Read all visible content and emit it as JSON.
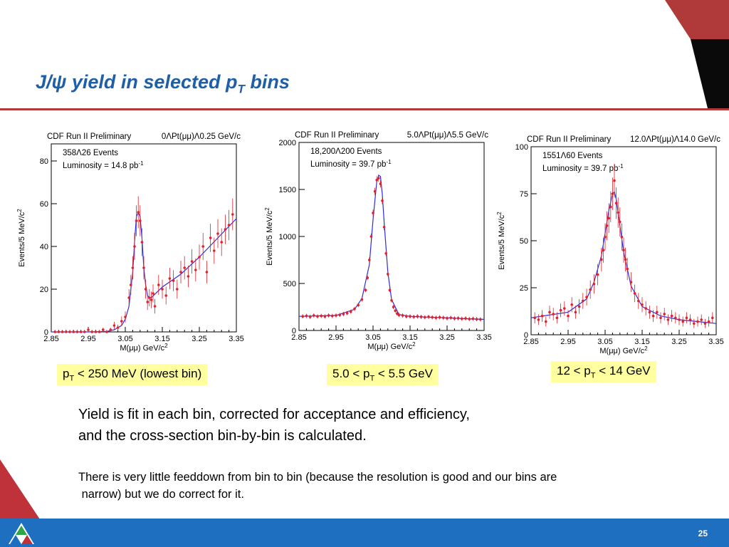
{
  "slide": {
    "title_main": "J/ψ yield in selected p",
    "title_sub": "T",
    "title_end": " bins",
    "page_number": "25",
    "body_text_1_line1": "Yield is fit in each bin, corrected for acceptance and efficiency,",
    "body_text_1_line2": "and the cross-section bin-by-bin is calculated.",
    "body_text_2_line1": "There is very little feeddown from bin to bin (because the resolution is good and our bins are",
    "body_text_2_line2": " narrow) but we do correct for it."
  },
  "captions": [
    {
      "pre": "p",
      "sub": "T",
      "post": " < 250 MeV (lowest bin)"
    },
    {
      "pre": "5.0 < p",
      "sub": "T",
      "post": " < 5.5 GeV"
    },
    {
      "pre": "12 < p",
      "sub": "T",
      "post": " < 14 GeV"
    }
  ],
  "colors": {
    "title": "#1f5fa8",
    "accent_red": "#b03a3a",
    "footer_blue": "#1f6fc0",
    "caption_bg": "#ffff9f",
    "data_points": "#e0202c",
    "fit_curve": "#2d2de0"
  },
  "chart_data": [
    {
      "type": "scatter",
      "header": "CDF Run II Preliminary",
      "range_label": "0ΛPt(μμ)Λ0.25 GeV/c",
      "events": "358Λ26 Events",
      "luminosity": "Luminosity = 14.8 pb",
      "lumi_exp": "-1",
      "xlabel": "M(μμ) GeV/c",
      "ylabel": "Events/5 MeV/c",
      "xlim": [
        2.85,
        3.35
      ],
      "ylim": [
        0,
        88
      ],
      "xticks": [
        "2.85",
        "2.95",
        "3.05",
        "3.15",
        "3.25",
        "3.35"
      ],
      "yticks": [
        0,
        20,
        40,
        60,
        80
      ],
      "x": [
        2.86,
        2.87,
        2.88,
        2.89,
        2.9,
        2.91,
        2.92,
        2.93,
        2.94,
        2.95,
        2.96,
        2.97,
        2.98,
        2.99,
        3.0,
        3.01,
        3.02,
        3.03,
        3.04,
        3.05,
        3.06,
        3.065,
        3.07,
        3.075,
        3.08,
        3.085,
        3.09,
        3.095,
        3.1,
        3.105,
        3.11,
        3.115,
        3.12,
        3.125,
        3.13,
        3.14,
        3.15,
        3.16,
        3.17,
        3.18,
        3.19,
        3.2,
        3.21,
        3.22,
        3.23,
        3.24,
        3.25,
        3.26,
        3.27,
        3.28,
        3.29,
        3.3,
        3.31,
        3.32,
        3.33,
        3.34
      ],
      "y": [
        0,
        0,
        0,
        0,
        0,
        0,
        0,
        0,
        0,
        1,
        0,
        0,
        0,
        1,
        0,
        1,
        3,
        2,
        5,
        7,
        16,
        22,
        30,
        40,
        52,
        56,
        52,
        42,
        30,
        20,
        14,
        16,
        15,
        18,
        12,
        22,
        20,
        17,
        25,
        24,
        20,
        28,
        30,
        26,
        33,
        29,
        35,
        40,
        28,
        44,
        38,
        46,
        42,
        48,
        50,
        55
      ],
      "fit_x": [
        2.85,
        2.95,
        3.0,
        3.02,
        3.04,
        3.05,
        3.06,
        3.07,
        3.075,
        3.08,
        3.085,
        3.09,
        3.095,
        3.1,
        3.105,
        3.11,
        3.115,
        3.12,
        3.15,
        3.2,
        3.25,
        3.3,
        3.35
      ],
      "fit_y": [
        0,
        0,
        0.2,
        1,
        3,
        6,
        12,
        28,
        42,
        54,
        56,
        54,
        44,
        30,
        22,
        17,
        16,
        16,
        21,
        27,
        35,
        44,
        53
      ]
    },
    {
      "type": "scatter",
      "header": "CDF Run II Preliminary",
      "range_label": "5.0ΛPt(μμ)Λ5.5 GeV/c",
      "events": "18,200Λ200 Events",
      "luminosity": "Luminosity = 39.7 pb",
      "lumi_exp": "-1",
      "xlabel": "M(μμ) GeV/c",
      "ylabel": "Events/5 MeV/c",
      "xlim": [
        2.85,
        3.35
      ],
      "ylim": [
        0,
        2000
      ],
      "xticks": [
        "2.85",
        "2.95",
        "3.05",
        "3.15",
        "3.25",
        "3.35"
      ],
      "yticks": [
        0,
        500,
        1000,
        1500,
        2000
      ],
      "x": [
        2.86,
        2.87,
        2.88,
        2.89,
        2.9,
        2.91,
        2.92,
        2.93,
        2.94,
        2.95,
        2.96,
        2.97,
        2.98,
        2.99,
        3.0,
        3.01,
        3.02,
        3.03,
        3.035,
        3.04,
        3.045,
        3.05,
        3.055,
        3.06,
        3.065,
        3.07,
        3.075,
        3.08,
        3.085,
        3.09,
        3.095,
        3.1,
        3.105,
        3.11,
        3.115,
        3.12,
        3.13,
        3.14,
        3.15,
        3.16,
        3.17,
        3.18,
        3.19,
        3.2,
        3.21,
        3.22,
        3.23,
        3.24,
        3.25,
        3.26,
        3.27,
        3.28,
        3.29,
        3.3,
        3.31,
        3.32,
        3.33,
        3.34
      ],
      "y": [
        150,
        155,
        145,
        160,
        150,
        155,
        150,
        160,
        155,
        160,
        165,
        175,
        185,
        200,
        230,
        270,
        330,
        430,
        560,
        750,
        1000,
        1250,
        1480,
        1600,
        1620,
        1560,
        1380,
        1100,
        820,
        600,
        430,
        320,
        250,
        210,
        180,
        165,
        160,
        150,
        150,
        145,
        150,
        145,
        140,
        145,
        140,
        135,
        140,
        135,
        130,
        135,
        128,
        130,
        125,
        128,
        122,
        125,
        120,
        118
      ],
      "fit_x": [
        2.85,
        2.95,
        3.0,
        3.02,
        3.04,
        3.05,
        3.06,
        3.065,
        3.07,
        3.075,
        3.08,
        3.09,
        3.1,
        3.12,
        3.15,
        3.2,
        3.25,
        3.3,
        3.35
      ],
      "fit_y": [
        150,
        160,
        225,
        340,
        700,
        1180,
        1580,
        1650,
        1640,
        1450,
        1150,
        620,
        330,
        170,
        150,
        142,
        135,
        125,
        118
      ]
    },
    {
      "type": "scatter",
      "header": "CDF Run II Preliminary",
      "range_label": "12.0ΛPt(μμ)Λ14.0 GeV/c",
      "events": "1551Λ60 Events",
      "luminosity": "Luminosity = 39.7 pb",
      "lumi_exp": "-1",
      "xlabel": "M(μμ) GeV/c",
      "ylabel": "Events/5 MeV/c",
      "xlim": [
        2.85,
        3.35
      ],
      "ylim": [
        0,
        100
      ],
      "xticks": [
        "2.85",
        "2.95",
        "3.05",
        "3.15",
        "3.25",
        "3.35"
      ],
      "yticks": [
        0,
        25,
        50,
        75,
        100
      ],
      "x": [
        2.86,
        2.87,
        2.88,
        2.89,
        2.9,
        2.91,
        2.92,
        2.93,
        2.94,
        2.95,
        2.96,
        2.97,
        2.98,
        2.99,
        3.0,
        3.01,
        3.02,
        3.03,
        3.04,
        3.045,
        3.05,
        3.055,
        3.06,
        3.065,
        3.07,
        3.075,
        3.08,
        3.085,
        3.09,
        3.095,
        3.1,
        3.105,
        3.11,
        3.12,
        3.13,
        3.14,
        3.15,
        3.16,
        3.17,
        3.18,
        3.19,
        3.2,
        3.21,
        3.22,
        3.23,
        3.24,
        3.25,
        3.26,
        3.27,
        3.28,
        3.29,
        3.3,
        3.31,
        3.32,
        3.33,
        3.34
      ],
      "y": [
        9,
        8,
        10,
        7,
        12,
        11,
        9,
        13,
        14,
        10,
        16,
        12,
        15,
        18,
        20,
        24,
        27,
        32,
        40,
        45,
        52,
        58,
        62,
        68,
        75,
        82,
        70,
        65,
        60,
        52,
        45,
        40,
        35,
        28,
        22,
        18,
        16,
        14,
        12,
        10,
        12,
        9,
        11,
        8,
        10,
        9,
        8,
        7,
        9,
        8,
        6,
        7,
        8,
        6,
        7,
        9
      ],
      "fit_x": [
        2.85,
        2.95,
        3.0,
        3.02,
        3.04,
        3.05,
        3.06,
        3.07,
        3.075,
        3.08,
        3.09,
        3.1,
        3.12,
        3.15,
        3.2,
        3.25,
        3.3,
        3.35
      ],
      "fit_y": [
        9,
        12,
        19,
        28,
        42,
        54,
        66,
        75,
        76,
        72,
        58,
        44,
        26,
        15,
        10,
        8,
        7,
        6
      ]
    }
  ]
}
